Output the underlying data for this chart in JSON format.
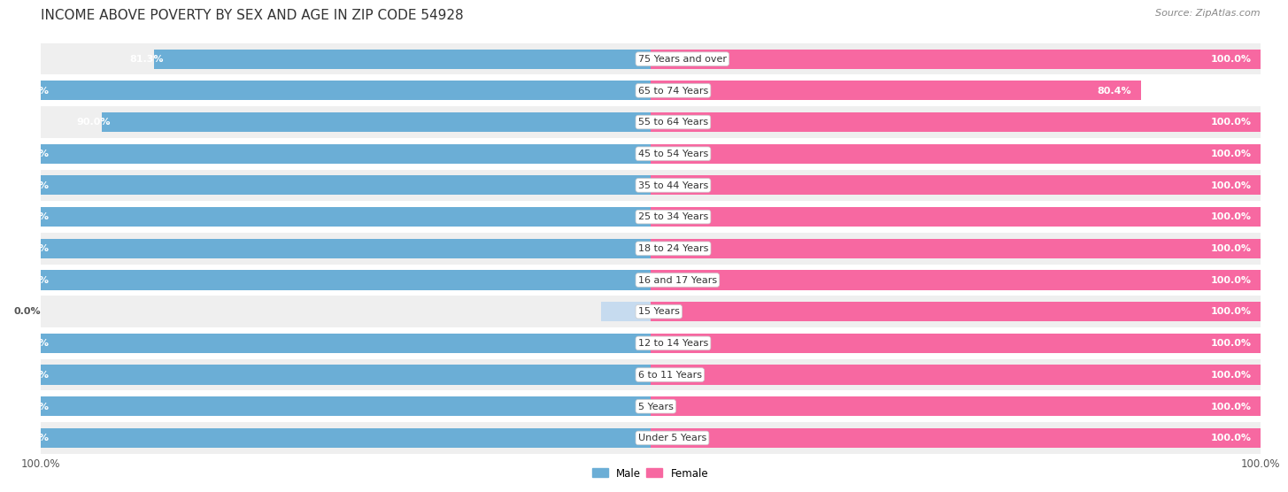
{
  "title": "INCOME ABOVE POVERTY BY SEX AND AGE IN ZIP CODE 54928",
  "source": "Source: ZipAtlas.com",
  "categories": [
    "Under 5 Years",
    "5 Years",
    "6 to 11 Years",
    "12 to 14 Years",
    "15 Years",
    "16 and 17 Years",
    "18 to 24 Years",
    "25 to 34 Years",
    "35 to 44 Years",
    "45 to 54 Years",
    "55 to 64 Years",
    "65 to 74 Years",
    "75 Years and over"
  ],
  "male_values": [
    100.0,
    100.0,
    100.0,
    100.0,
    0.0,
    100.0,
    100.0,
    100.0,
    100.0,
    100.0,
    90.0,
    100.0,
    81.3
  ],
  "female_values": [
    100.0,
    100.0,
    100.0,
    100.0,
    100.0,
    100.0,
    100.0,
    100.0,
    100.0,
    100.0,
    100.0,
    80.4,
    100.0
  ],
  "male_color": "#6baed6",
  "female_color": "#f768a1",
  "male_color_light": "#c6dbef",
  "male_label": "Male",
  "female_label": "Female",
  "bar_height": 0.62,
  "bg_color": "#ffffff",
  "row_colors": [
    "#efefef",
    "#ffffff"
  ],
  "title_fontsize": 11,
  "label_fontsize": 8.5,
  "value_fontsize": 8,
  "axis_label_fontsize": 8.5
}
